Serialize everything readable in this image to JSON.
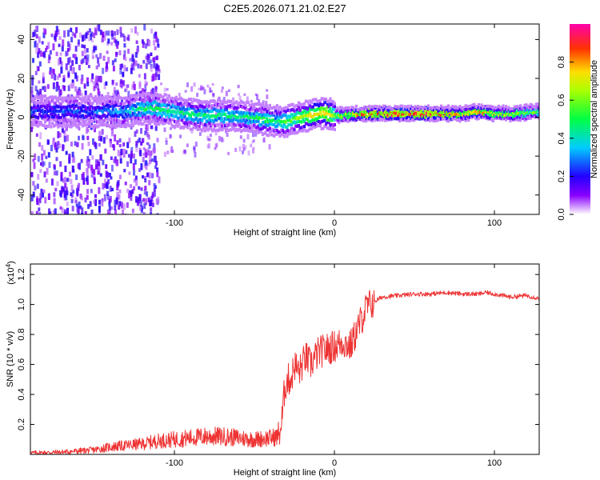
{
  "figure": {
    "title": "C2E5.2026.071.21.02.E27"
  },
  "chart_data": [
    {
      "type": "heatmap",
      "title": "C2E5.2026.071.21.02.E27",
      "xlabel": "Height of straight line (km)",
      "ylabel": "Frequency (Hz)",
      "xlim": [
        -190,
        128
      ],
      "ylim": [
        -50,
        48
      ],
      "xticks": [
        -100,
        0,
        100
      ],
      "yticks": [
        -40,
        -20,
        0,
        20,
        40
      ],
      "colorbar": {
        "label": "Normalized spectral amplitude",
        "range": [
          0,
          1
        ],
        "ticks": [
          "0.0",
          "0.2",
          "0.4",
          "0.6",
          "0.8"
        ],
        "tick_values": [
          0.0,
          0.2,
          0.4,
          0.6,
          0.8
        ]
      },
      "ridge": {
        "x": [
          -170,
          -150,
          -130,
          -115,
          -100,
          -85,
          -70,
          -55,
          -45,
          -38,
          -30,
          -20,
          -10,
          -5,
          0,
          10,
          20,
          40,
          60,
          80,
          90,
          100,
          110,
          128
        ],
        "y": [
          3,
          3,
          3,
          5,
          3,
          1,
          1,
          0,
          -1,
          -2,
          -2,
          0,
          2,
          2,
          1,
          1.5,
          2,
          2,
          2,
          2,
          3,
          2,
          2,
          3
        ],
        "amplitude": [
          0.3,
          0.3,
          0.4,
          0.55,
          0.5,
          0.5,
          0.5,
          0.5,
          0.55,
          0.5,
          0.6,
          0.7,
          0.8,
          0.85,
          0.6,
          0.8,
          0.9,
          0.95,
          0.95,
          0.8,
          0.85,
          0.75,
          0.7,
          0.6
        ]
      }
    },
    {
      "type": "line",
      "title": "",
      "xlabel": "Height of straight line (km)",
      "ylabel": "SNR (10 * v/v)",
      "scale_label": "(x10",
      "scale_exponent": "4",
      "scale_close": ")",
      "xlim": [
        -190,
        128
      ],
      "ylim": [
        0,
        1.27
      ],
      "xticks": [
        -100,
        0,
        100
      ],
      "yticks": [
        0.2,
        0.4,
        0.6,
        0.8,
        1.0,
        1.2
      ],
      "ytick_labels": [
        "0.2",
        "0.4",
        "0.6",
        "0.8",
        "1.0",
        "1.2"
      ],
      "series": [
        {
          "name": "SNR",
          "color": "#ee3333",
          "x": [
            -190,
            -170,
            -150,
            -140,
            -130,
            -120,
            -110,
            -100,
            -90,
            -80,
            -70,
            -60,
            -50,
            -40,
            -35,
            -33,
            -31,
            -29,
            -27,
            -25,
            -22,
            -20,
            -18,
            -15,
            -10,
            -5,
            0,
            5,
            10,
            15,
            20,
            25,
            30,
            40,
            50,
            60,
            70,
            80,
            90,
            95,
            100,
            110,
            120,
            128
          ],
          "y": [
            0.01,
            0.015,
            0.03,
            0.05,
            0.06,
            0.07,
            0.09,
            0.1,
            0.11,
            0.12,
            0.12,
            0.11,
            0.1,
            0.11,
            0.12,
            0.2,
            0.45,
            0.5,
            0.5,
            0.6,
            0.55,
            0.6,
            0.65,
            0.6,
            0.68,
            0.7,
            0.72,
            0.75,
            0.72,
            0.85,
            0.98,
            1.02,
            1.05,
            1.06,
            1.07,
            1.07,
            1.08,
            1.07,
            1.07,
            1.08,
            1.07,
            1.05,
            1.06,
            1.04
          ]
        }
      ]
    }
  ]
}
